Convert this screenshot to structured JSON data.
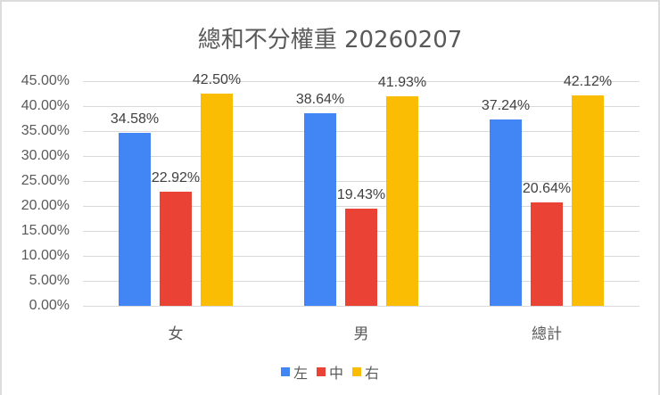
{
  "chart_data": {
    "type": "bar",
    "title": "總和不分權重 20260207",
    "categories": [
      "女",
      "男",
      "總計"
    ],
    "series": [
      {
        "name": "左",
        "color": "#4285F4",
        "values": [
          34.58,
          38.64,
          37.24
        ],
        "labels": [
          "34.58%",
          "38.64%",
          "37.24%"
        ]
      },
      {
        "name": "中",
        "color": "#EA4335",
        "values": [
          22.92,
          19.43,
          20.64
        ],
        "labels": [
          "22.92%",
          "19.43%",
          "20.64%"
        ]
      },
      {
        "name": "右",
        "color": "#FBBC04",
        "values": [
          42.5,
          41.93,
          42.12
        ],
        "labels": [
          "42.50%",
          "41.93%",
          "42.12%"
        ]
      }
    ],
    "xlabel": "",
    "ylabel": "",
    "ylim": [
      0,
      45
    ],
    "yticks": [
      "0.00%",
      "5.00%",
      "10.00%",
      "15.00%",
      "20.00%",
      "25.00%",
      "30.00%",
      "35.00%",
      "40.00%",
      "45.00%"
    ],
    "grid": true,
    "legend_position": "bottom"
  }
}
